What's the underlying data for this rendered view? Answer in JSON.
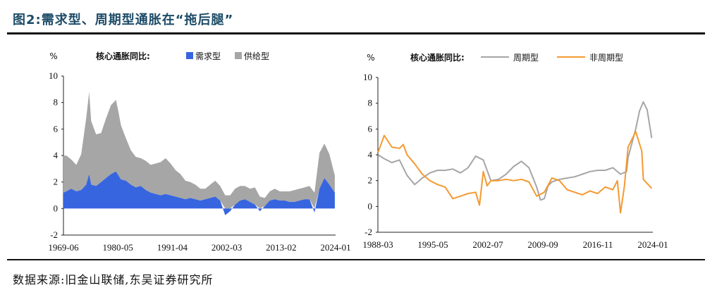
{
  "figure": {
    "title": "图2:需求型、周期型通胀在“拖后腿”",
    "source": "数据来源:旧金山联储,东吴证券研究所"
  },
  "colors": {
    "demand": "#3765e0",
    "supply": "#a6a6a6",
    "cyclical": "#a6a6a6",
    "acyclical": "#f49a32"
  },
  "chart_data": [
    {
      "type": "area",
      "stacked": true,
      "title": "",
      "ylabel": "%",
      "legend_title": "核心通胀同比:",
      "legend_position": "top",
      "ylim": [
        -2,
        10
      ],
      "yticks": [
        "10",
        "8",
        "6",
        "4",
        "2",
        "0",
        "-2"
      ],
      "xlim": [
        1969.42,
        2024.25
      ],
      "xticks": [
        "1969-06",
        "1980-05",
        "1991-04",
        "2002-03",
        "2013-02",
        "2024-01"
      ],
      "x": [
        1969.4,
        1970,
        1971,
        1972,
        1973,
        1974,
        1974.6,
        1975,
        1976,
        1977,
        1978,
        1979,
        1980,
        1980.5,
        1981,
        1982,
        1983,
        1984,
        1985,
        1986,
        1987,
        1988,
        1989,
        1990,
        1991,
        1992,
        1993,
        1994,
        1995,
        1996,
        1997,
        1998,
        1999,
        2000,
        2001,
        2002,
        2003,
        2004,
        2005,
        2006,
        2007,
        2008,
        2009,
        2010,
        2011,
        2012,
        2013,
        2014,
        2015,
        2016,
        2017,
        2018,
        2019,
        2020,
        2021,
        2022,
        2023,
        2024.1
      ],
      "series": [
        {
          "name": "需求型",
          "values": [
            1.2,
            1.3,
            1.5,
            1.3,
            1.4,
            1.8,
            2.6,
            1.8,
            1.7,
            2.0,
            2.3,
            2.6,
            2.8,
            2.5,
            2.2,
            2.1,
            1.8,
            1.6,
            1.7,
            1.4,
            1.2,
            1.1,
            1.0,
            1.1,
            1.0,
            0.9,
            0.8,
            0.7,
            0.8,
            0.7,
            0.6,
            0.7,
            0.8,
            0.9,
            0.6,
            -0.5,
            -0.2,
            0.3,
            0.6,
            0.7,
            0.5,
            0.3,
            -0.2,
            0.2,
            0.6,
            0.7,
            0.6,
            0.6,
            0.5,
            0.5,
            0.6,
            0.7,
            0.7,
            -0.3,
            1.5,
            2.3,
            1.8,
            1.2
          ]
        },
        {
          "name": "供给型",
          "values": [
            2.8,
            2.7,
            2.2,
            2.0,
            2.7,
            5.0,
            6.2,
            4.8,
            3.9,
            3.7,
            4.5,
            5.2,
            5.4,
            4.8,
            4.1,
            3.2,
            2.6,
            2.3,
            2.1,
            2.2,
            2.1,
            2.3,
            2.5,
            2.7,
            2.4,
            2.0,
            1.8,
            1.4,
            1.2,
            1.1,
            0.9,
            0.8,
            1.0,
            1.2,
            1.1,
            1.0,
            1.0,
            1.2,
            1.1,
            1.0,
            1.0,
            1.3,
            0.9,
            0.6,
            0.7,
            0.8,
            0.7,
            0.7,
            0.8,
            0.9,
            0.9,
            0.9,
            1.0,
            1.2,
            2.7,
            2.6,
            2.3,
            1.3
          ]
        }
      ]
    },
    {
      "type": "line",
      "title": "",
      "ylabel": "%",
      "legend_title": "核心通胀同比:",
      "legend_position": "top",
      "ylim": [
        -2,
        10
      ],
      "yticks": [
        "10",
        "8",
        "6",
        "4",
        "2",
        "0",
        "-2"
      ],
      "xlim": [
        1988.17,
        2024.25
      ],
      "xticks": [
        "1988-03",
        "1995-05",
        "2002-07",
        "2009-09",
        "2016-11",
        "2024-01"
      ],
      "series": [
        {
          "name": "周期型",
          "x": [
            1988.2,
            1989,
            1990,
            1991,
            1992,
            1993,
            1994,
            1995,
            1996,
            1997,
            1998,
            1999,
            2000,
            2001,
            2002,
            2003,
            2004,
            2005,
            2006,
            2007,
            2008,
            2009,
            2009.5,
            2010,
            2010.5,
            2011,
            2012,
            2013,
            2014,
            2015,
            2016,
            2017,
            2018,
            2019,
            2020,
            2020.8,
            2021,
            2022,
            2022.5,
            2023,
            2023.5,
            2024.1
          ],
          "values": [
            4.0,
            3.7,
            3.4,
            3.6,
            2.4,
            1.7,
            2.2,
            2.6,
            2.8,
            2.8,
            2.9,
            2.6,
            3.0,
            3.9,
            3.6,
            2.0,
            2.1,
            2.5,
            3.1,
            3.5,
            3.0,
            1.5,
            0.5,
            0.6,
            1.6,
            1.9,
            2.1,
            2.2,
            2.3,
            2.5,
            2.7,
            2.8,
            2.8,
            3.0,
            2.5,
            2.7,
            3.8,
            6.0,
            7.4,
            8.1,
            7.5,
            5.3
          ]
        },
        {
          "name": "非周期型",
          "x": [
            1988.2,
            1989,
            1990,
            1991,
            1991.5,
            1992,
            1993,
            1994,
            1995,
            1996,
            1997,
            1998,
            1999,
            2000,
            2001,
            2001.5,
            2002,
            2002.5,
            2003,
            2004,
            2005,
            2006,
            2007,
            2008,
            2009,
            2010,
            2011,
            2012,
            2013,
            2014,
            2015,
            2016,
            2017,
            2018,
            2019,
            2019.6,
            2020,
            2020.5,
            2021,
            2022,
            2022.8,
            2023,
            2024.1
          ],
          "values": [
            4.2,
            5.5,
            4.6,
            4.5,
            4.8,
            4.0,
            3.3,
            2.5,
            2.0,
            1.7,
            1.5,
            0.6,
            0.8,
            1.0,
            1.1,
            0.1,
            2.7,
            1.6,
            2.0,
            2.0,
            2.1,
            2.0,
            2.1,
            1.9,
            0.8,
            1.1,
            2.2,
            2.0,
            1.3,
            1.1,
            0.9,
            1.2,
            1.0,
            1.5,
            1.3,
            2.0,
            -0.5,
            1.5,
            4.6,
            5.8,
            4.3,
            2.1,
            1.4
          ]
        }
      ]
    }
  ]
}
